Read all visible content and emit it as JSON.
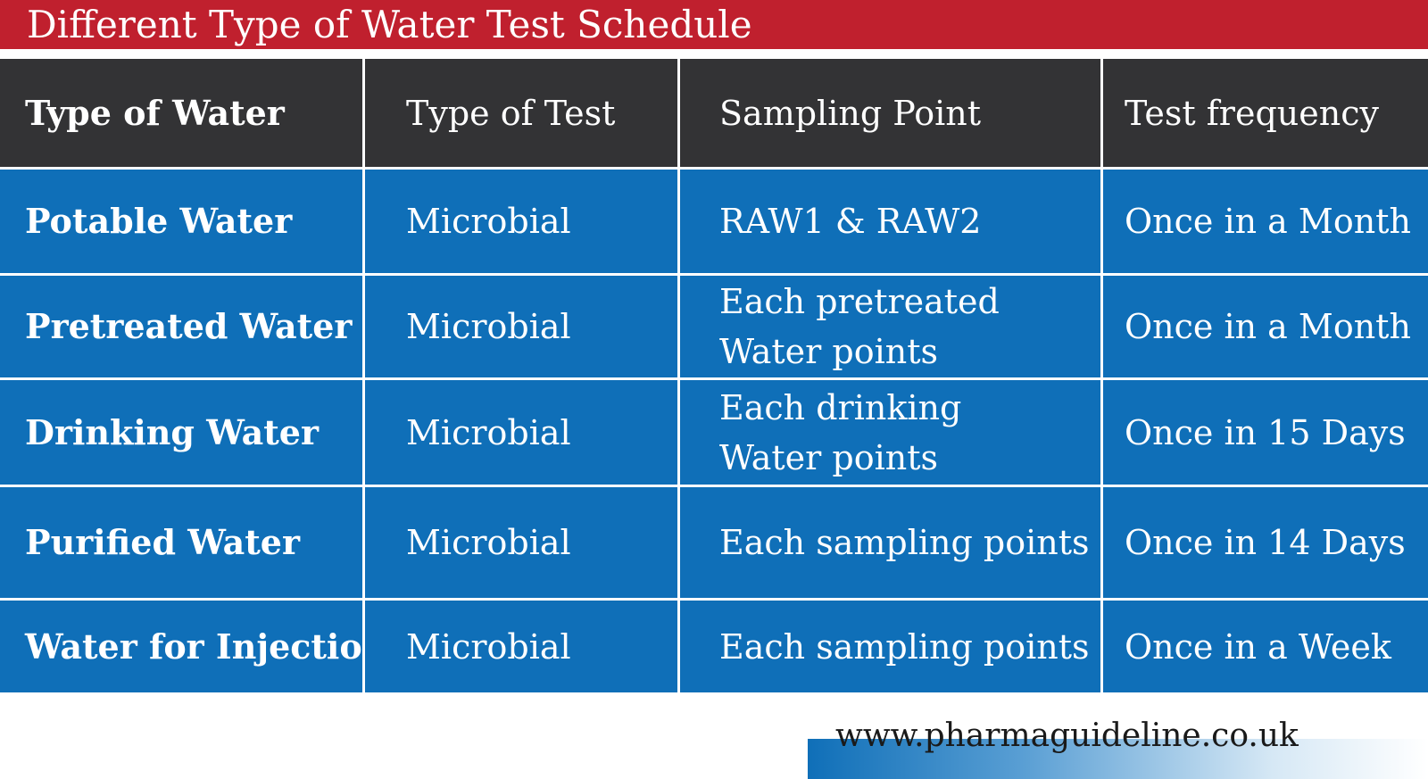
{
  "title": "Different Type of Water Test Schedule",
  "table": {
    "headers": [
      "Type of Water",
      "Type of Test",
      "Sampling Point",
      "Test frequency"
    ],
    "rows": [
      {
        "type_of_water": "Potable Water",
        "type_of_test": "Microbial",
        "sampling_point": [
          "RAW1 & RAW2"
        ],
        "test_frequency": "Once in a Month"
      },
      {
        "type_of_water": "Pretreated Water",
        "type_of_test": "Microbial",
        "sampling_point": [
          "Each pretreated",
          "Water points"
        ],
        "test_frequency": "Once in a Month"
      },
      {
        "type_of_water": "Drinking Water",
        "type_of_test": "Microbial",
        "sampling_point": [
          "Each drinking",
          "Water points"
        ],
        "test_frequency": "Once in 15 Days"
      },
      {
        "type_of_water": "Purified Water",
        "type_of_test": "Microbial",
        "sampling_point": [
          "Each sampling points"
        ],
        "test_frequency": "Once in 14 Days"
      },
      {
        "type_of_water": "Water for Injection",
        "type_of_test": "Microbial",
        "sampling_point": [
          "Each sampling points"
        ],
        "test_frequency": "Once in a Week"
      }
    ]
  },
  "footer": {
    "url": "www.pharmaguideline.co.uk"
  },
  "colors": {
    "title_bar": "#c0202e",
    "header_row": "#333335",
    "body_rows": "#0f6fb8",
    "text": "#ffffff"
  }
}
